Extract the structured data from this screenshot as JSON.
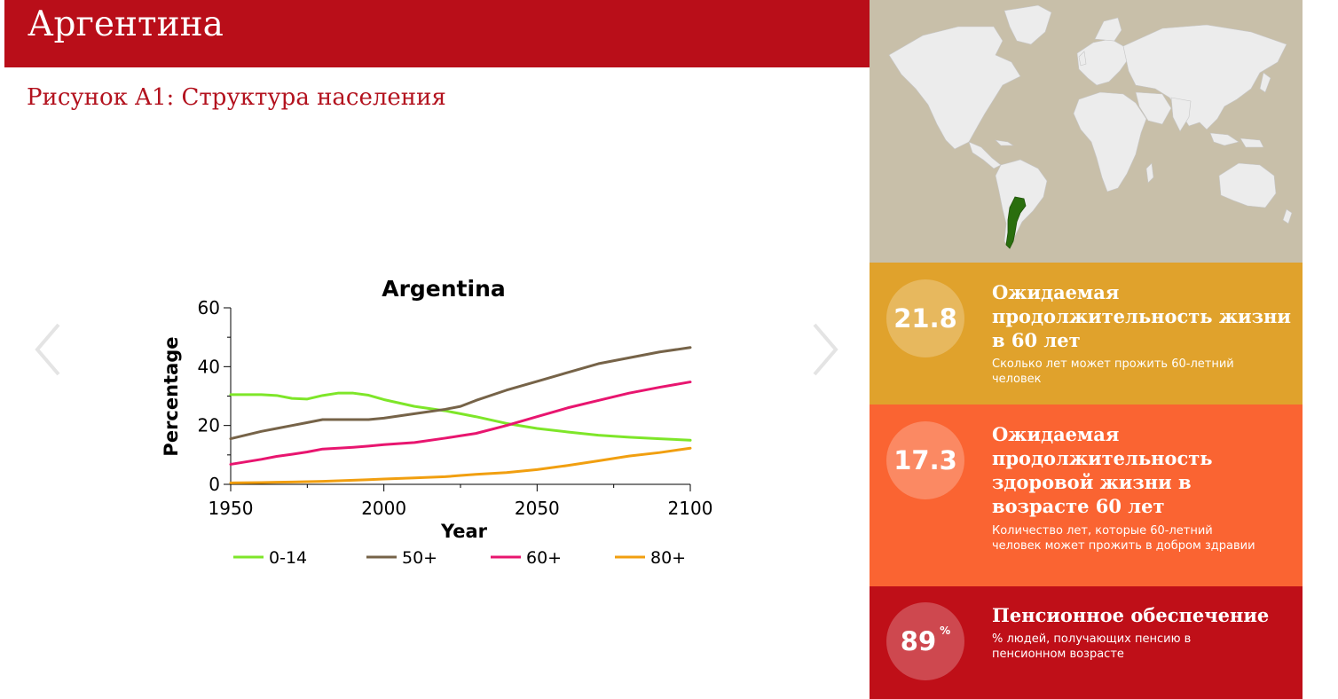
{
  "header": {
    "country": "Аргентина"
  },
  "figure": {
    "caption": "Рисунок A1: Структура населения"
  },
  "carousel": {
    "prev_icon": "chevron-left-icon",
    "next_icon": "chevron-right-icon"
  },
  "chart_data": {
    "type": "line",
    "title": "Argentina",
    "xlabel": "Year",
    "ylabel": "Percentage",
    "xlim": [
      1950,
      2100
    ],
    "ylim": [
      0,
      60
    ],
    "xticks": [
      "1950",
      "2000",
      "2050",
      "2100"
    ],
    "yticks": [
      "0",
      "20",
      "40",
      "60"
    ],
    "x": [
      1950,
      1960,
      1965,
      1970,
      1975,
      1980,
      1985,
      1990,
      1995,
      2000,
      2010,
      2020,
      2025,
      2030,
      2040,
      2050,
      2060,
      2070,
      2080,
      2090,
      2100
    ],
    "series": [
      {
        "name": "0-14",
        "color": "#7ee629",
        "values": [
          30.5,
          30.5,
          30.2,
          29.2,
          29.0,
          30.2,
          31.0,
          31.0,
          30.3,
          28.8,
          26.5,
          25.0,
          24.0,
          23.0,
          20.7,
          19.0,
          17.8,
          16.7,
          16.0,
          15.5,
          15.0
        ]
      },
      {
        "name": "50+",
        "color": "#766348",
        "values": [
          15.5,
          18.0,
          19.0,
          20.0,
          21.0,
          22.0,
          22.0,
          22.0,
          22.0,
          22.5,
          24.0,
          25.5,
          26.5,
          28.5,
          32.0,
          35.0,
          38.0,
          41.0,
          43.0,
          45.0,
          46.5
        ]
      },
      {
        "name": "60+",
        "color": "#e8156f",
        "values": [
          6.8,
          8.5,
          9.5,
          10.2,
          11.0,
          12.0,
          12.3,
          12.6,
          13.0,
          13.5,
          14.2,
          15.7,
          16.5,
          17.3,
          20.0,
          23.0,
          26.0,
          28.5,
          31.0,
          33.0,
          34.8
        ]
      },
      {
        "name": "80+",
        "color": "#f19f10",
        "values": [
          0.5,
          0.6,
          0.7,
          0.8,
          0.9,
          1.0,
          1.2,
          1.4,
          1.6,
          1.8,
          2.2,
          2.6,
          3.0,
          3.4,
          4.0,
          5.0,
          6.4,
          8.0,
          9.6,
          10.8,
          12.3
        ]
      }
    ],
    "legend": "bottom"
  },
  "map": {
    "icon": "world-map-icon",
    "highlight_color": "#2a6e0e",
    "land_color": "#ececec",
    "sea_color": "#c8bfa9"
  },
  "stats": {
    "life_expectancy": {
      "value": "21.8",
      "heading": "Ожидаемая продолжительность жизни в 60 лет",
      "description": "Сколько лет может прожить 60-летний человек",
      "color": "#e0a22c"
    },
    "healthy_life": {
      "value": "17.3",
      "heading": "Ожидаемая продолжительность здоровой жизни в возрасте 60 лет",
      "description": "Количество лет, которые 60-летний человек может прожить в добром здравии",
      "color": "#fa6432"
    },
    "pension": {
      "value": "89",
      "unit": "%",
      "heading": "Пенсионное обеспечение",
      "description": "% людей, получающих пенсию в пенсионном возрасте",
      "color": "#bf0f18"
    }
  }
}
